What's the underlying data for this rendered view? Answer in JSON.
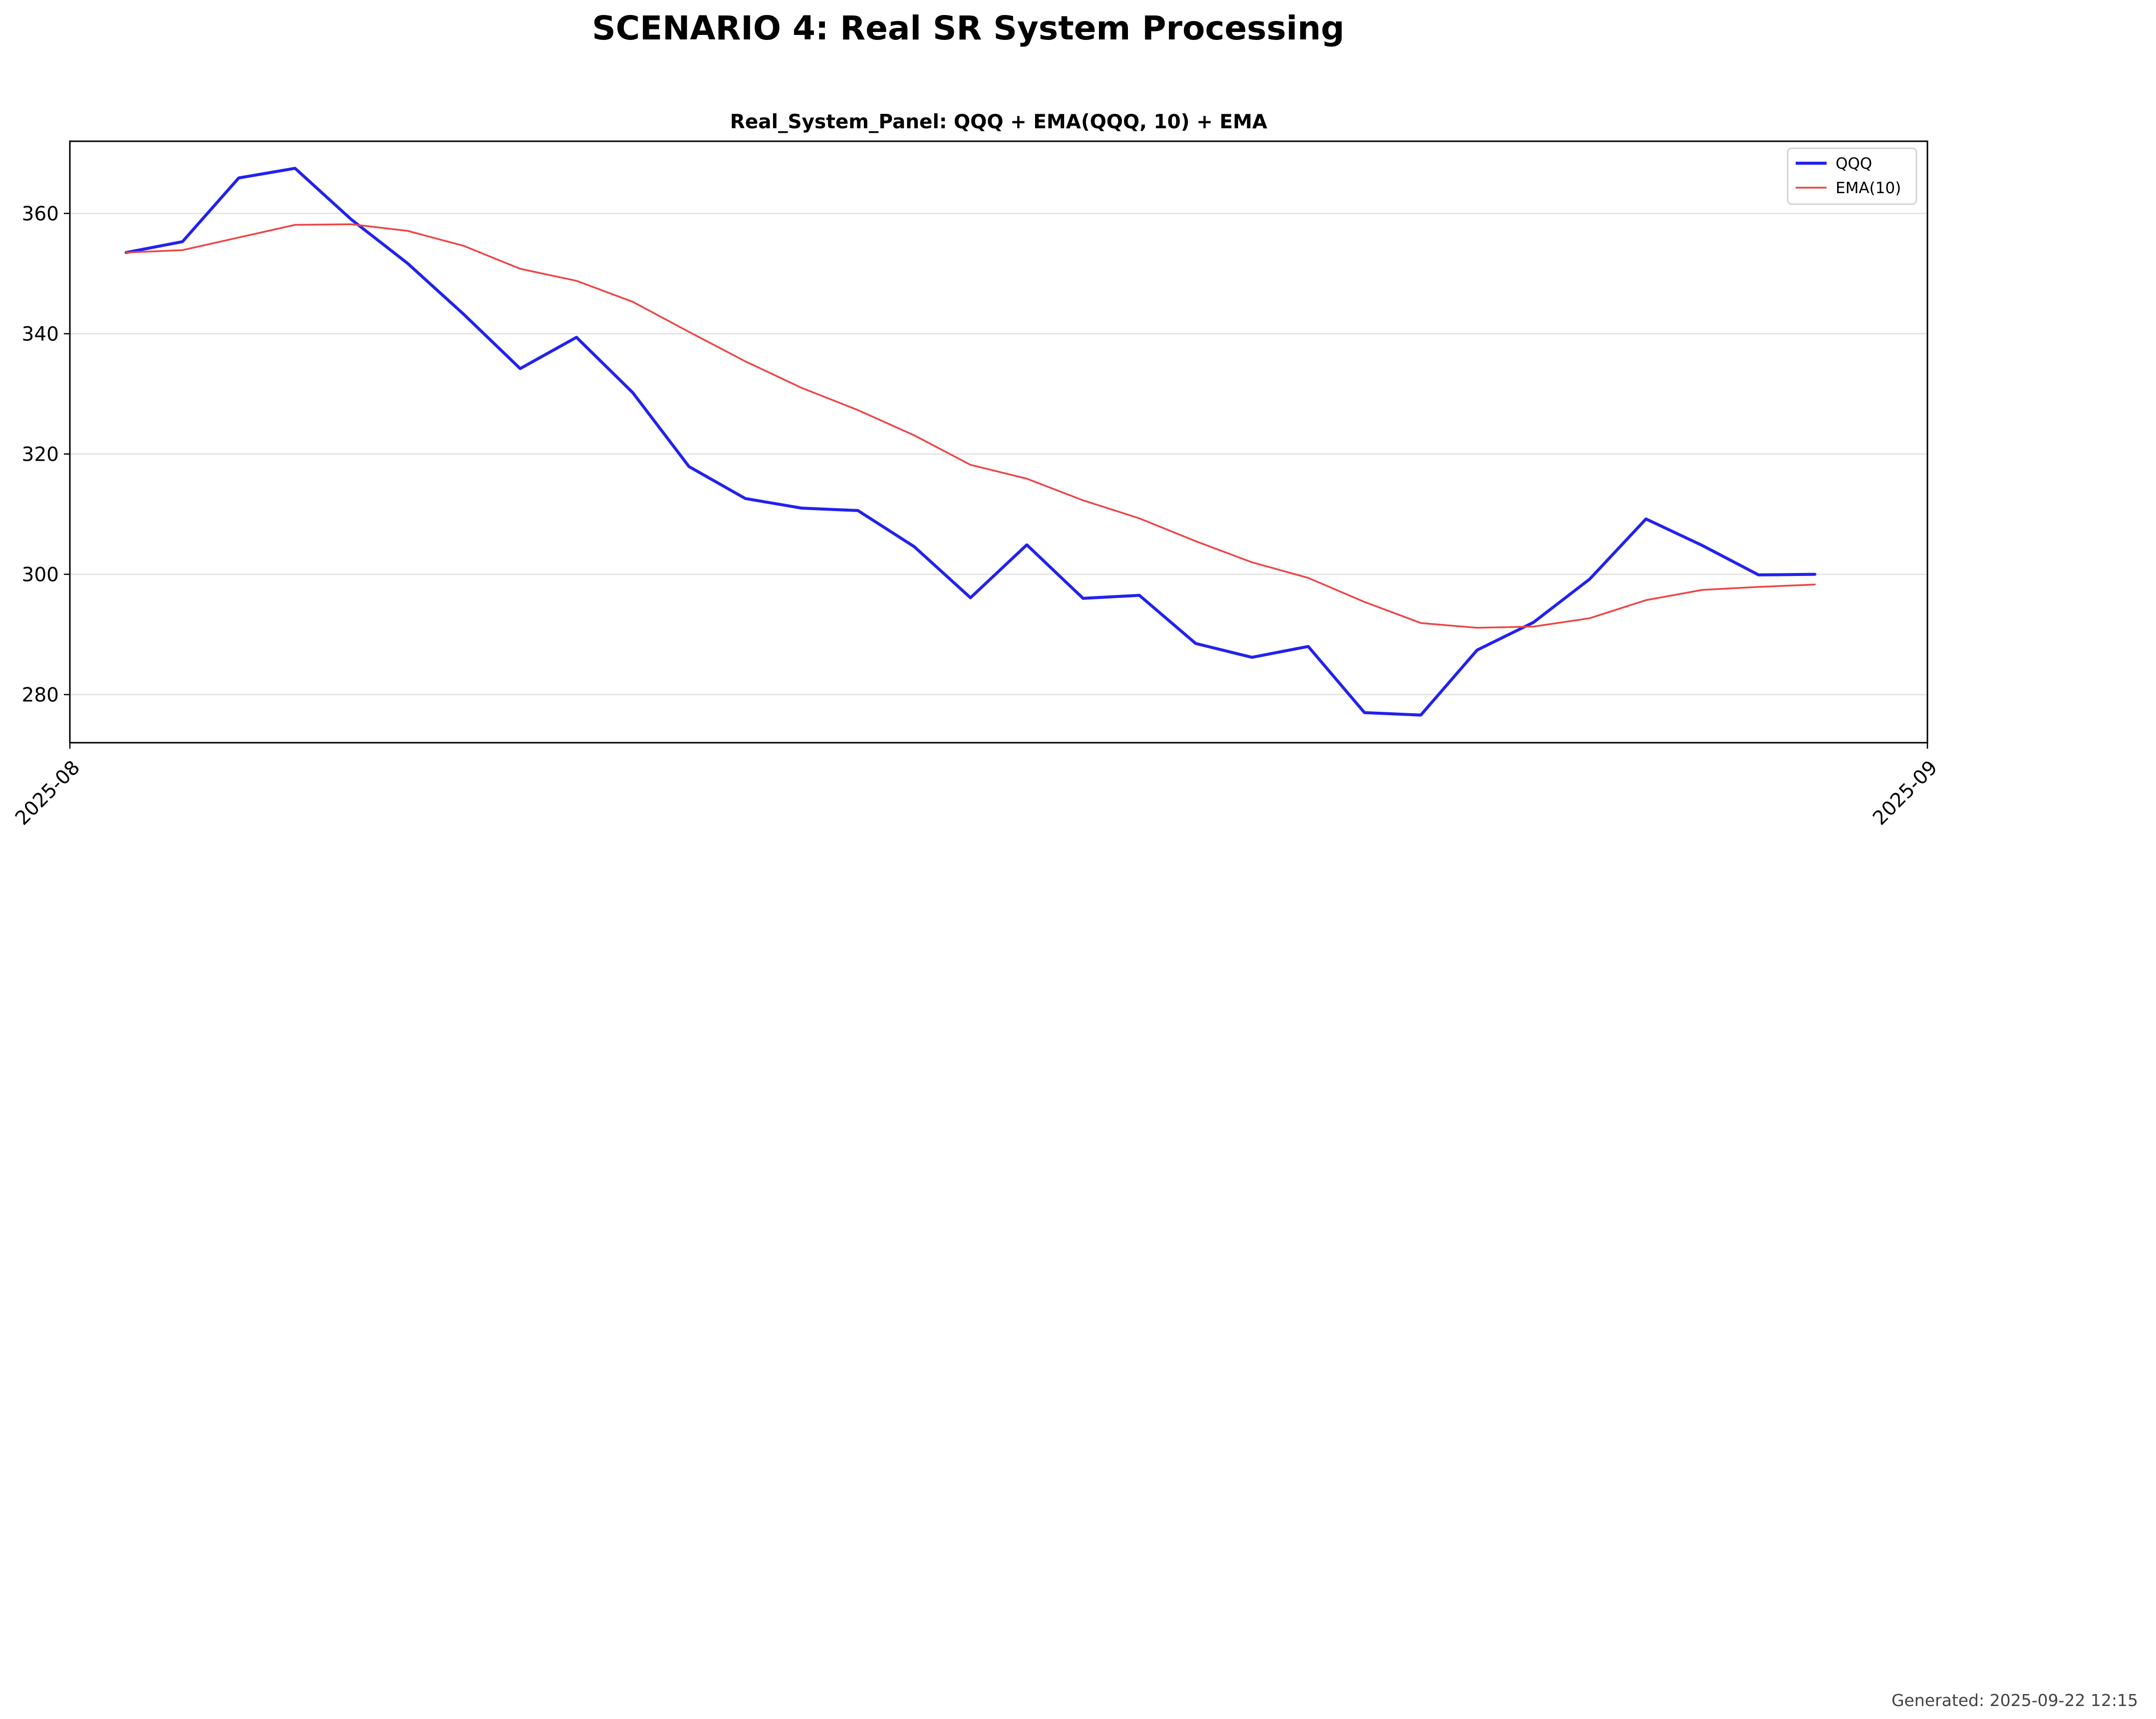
{
  "page": {
    "title": "SCENARIO 4: Real SR System Processing",
    "footer": "Generated: 2025-09-22 12:15"
  },
  "chart_data": {
    "type": "line",
    "title": "Real_System_Panel: QQQ + EMA(QQQ, 10) + EMA",
    "xlabel": "",
    "ylabel": "",
    "x": [
      "2025-08-02",
      "2025-08-03",
      "2025-08-04",
      "2025-08-05",
      "2025-08-06",
      "2025-08-07",
      "2025-08-08",
      "2025-08-09",
      "2025-08-10",
      "2025-08-11",
      "2025-08-12",
      "2025-08-13",
      "2025-08-14",
      "2025-08-15",
      "2025-08-16",
      "2025-08-17",
      "2025-08-18",
      "2025-08-19",
      "2025-08-20",
      "2025-08-21",
      "2025-08-22",
      "2025-08-23",
      "2025-08-24",
      "2025-08-25",
      "2025-08-26",
      "2025-08-27",
      "2025-08-28",
      "2025-08-29",
      "2025-08-30",
      "2025-08-31",
      "2025-09-01"
    ],
    "xlim": [
      "2025-08-01",
      "2025-09-03"
    ],
    "xticks": [
      "2025-08",
      "2025-09"
    ],
    "xtick_positions": [
      "2025-08-01",
      "2025-09-03"
    ],
    "ylim": [
      272,
      372
    ],
    "yticks": [
      280,
      300,
      320,
      340,
      360
    ],
    "grid": "y",
    "legend": "top-right",
    "series": [
      {
        "name": "QQQ",
        "color": "#2222ee",
        "values": [
          353.5,
          355.3,
          365.9,
          367.5,
          359.0,
          351.7,
          343.2,
          334.2,
          339.4,
          330.2,
          317.9,
          312.6,
          311.0,
          310.6,
          304.6,
          296.1,
          304.9,
          296.0,
          296.5,
          288.5,
          286.2,
          288.0,
          277.0,
          276.6,
          287.4,
          292.0,
          299.2,
          309.2,
          304.8,
          299.9,
          300.0
        ]
      },
      {
        "name": "EMA(10)",
        "color": "#ee4444",
        "values": [
          353.5,
          353.9,
          356.0,
          358.1,
          358.2,
          357.1,
          354.6,
          350.8,
          348.8,
          345.3,
          340.3,
          335.4,
          331.0,
          327.3,
          323.1,
          318.2,
          315.9,
          312.3,
          309.3,
          305.5,
          302.0,
          299.4,
          295.4,
          291.9,
          291.1,
          291.3,
          292.7,
          295.7,
          297.4,
          297.9,
          298.3
        ]
      }
    ]
  }
}
